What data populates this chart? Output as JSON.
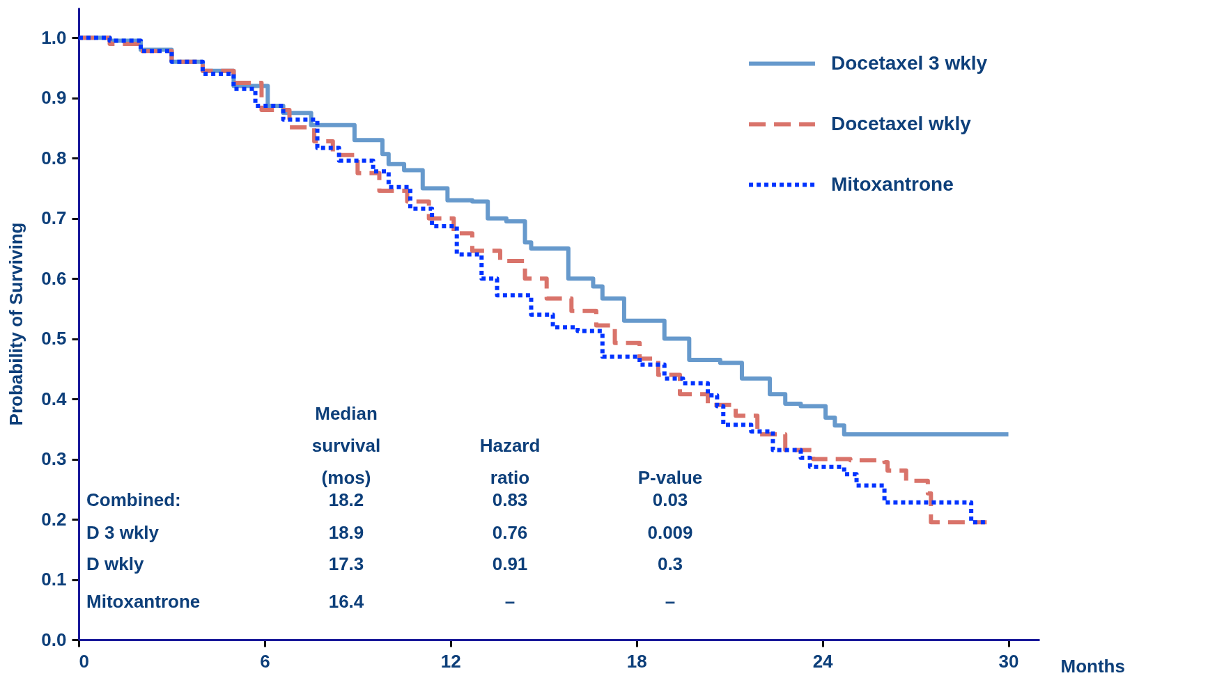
{
  "chart_data": {
    "type": "step",
    "xlabel": "Months",
    "ylabel": "Probability of Surviving",
    "xlim": [
      0,
      31
    ],
    "ylim": [
      0,
      1.05
    ],
    "xticks": [
      0,
      6,
      12,
      18,
      24,
      30
    ],
    "yticks": [
      {
        "value": 0,
        "label": "0.0"
      },
      0.1,
      0.2,
      0.3,
      0.4,
      0.5,
      0.6,
      0.7,
      0.8,
      0.9,
      {
        "value": 1,
        "label": "1.0"
      }
    ],
    "grid": false,
    "legend": "top right",
    "marker": "none",
    "series": [
      {
        "name": "Docetaxel 3 wkly",
        "color": "#6699cc",
        "line_style": "solid",
        "x": [
          0,
          1,
          2,
          3,
          4,
          5,
          6.1,
          6.6,
          7.5,
          8.1,
          8.9,
          9.8,
          10.0,
          10.5,
          11.1,
          11.9,
          12.7,
          13.2,
          13.8,
          14.4,
          14.6,
          15.8,
          16.6,
          16.9,
          17.6,
          18.2,
          18.9,
          19.7,
          20.7,
          21.4,
          22.3,
          22.8,
          23.3,
          24.1,
          24.4,
          24.7,
          30.0
        ],
        "values": [
          1.0,
          0.995,
          0.98,
          0.96,
          0.945,
          0.92,
          0.887,
          0.875,
          0.855,
          0.855,
          0.83,
          0.807,
          0.79,
          0.78,
          0.75,
          0.73,
          0.728,
          0.7,
          0.695,
          0.66,
          0.65,
          0.6,
          0.587,
          0.567,
          0.53,
          0.53,
          0.5,
          0.465,
          0.46,
          0.434,
          0.408,
          0.392,
          0.388,
          0.369,
          0.356,
          0.341,
          0.341
        ]
      },
      {
        "name": "Docetaxel wkly",
        "color": "#d9736a",
        "line_style": "dashed",
        "x": [
          0,
          1,
          2,
          3,
          4,
          5,
          5.9,
          6.8,
          7.6,
          8.2,
          9.0,
          9.7,
          10.6,
          11.3,
          12.1,
          12.7,
          13.6,
          14.4,
          15.1,
          15.9,
          16.7,
          17.3,
          18.1,
          18.7,
          19.4,
          20.3,
          21.2,
          21.9,
          22.8,
          23.7,
          24.9,
          26.0,
          26.1,
          26.7,
          27.4,
          27.5,
          29.3
        ],
        "values": [
          1.0,
          0.99,
          0.978,
          0.96,
          0.945,
          0.925,
          0.88,
          0.851,
          0.828,
          0.805,
          0.775,
          0.746,
          0.728,
          0.7,
          0.675,
          0.646,
          0.629,
          0.6,
          0.567,
          0.546,
          0.522,
          0.493,
          0.467,
          0.44,
          0.408,
          0.39,
          0.372,
          0.341,
          0.315,
          0.3,
          0.298,
          0.295,
          0.281,
          0.264,
          0.243,
          0.195,
          0.195
        ]
      },
      {
        "name": "Mitoxantrone",
        "color": "#0033ff",
        "line_style": "dotted",
        "x": [
          0,
          1,
          2,
          3,
          4,
          5,
          5.7,
          6.6,
          7.7,
          8.4,
          9.5,
          10.0,
          10.7,
          11.4,
          12.2,
          13.0,
          13.5,
          14.6,
          15.3,
          16.1,
          16.9,
          18.1,
          18.9,
          19.5,
          20.3,
          20.6,
          20.8,
          21.7,
          22.4,
          23.3,
          23.6,
          24.7,
          25.1,
          26.0,
          28.7,
          28.8,
          29.3
        ],
        "values": [
          1.0,
          0.995,
          0.978,
          0.96,
          0.94,
          0.915,
          0.887,
          0.864,
          0.817,
          0.796,
          0.778,
          0.752,
          0.716,
          0.687,
          0.64,
          0.6,
          0.572,
          0.54,
          0.519,
          0.513,
          0.47,
          0.457,
          0.434,
          0.426,
          0.406,
          0.388,
          0.357,
          0.346,
          0.315,
          0.302,
          0.287,
          0.275,
          0.256,
          0.228,
          0.228,
          0.195,
          0.195
        ]
      }
    ],
    "annotations": [
      "Median\nsurvival\n(mos)",
      "Hazard\nratio",
      "P-value",
      "Combined:",
      "18.2",
      "0.83",
      "0.03",
      "D  3 wkly",
      "18.9",
      "0.76",
      "0.009",
      "D  wkly",
      "17.3",
      "0.91",
      "0.3",
      "Mitoxantrone",
      "16.4",
      "–",
      "–"
    ]
  }
}
